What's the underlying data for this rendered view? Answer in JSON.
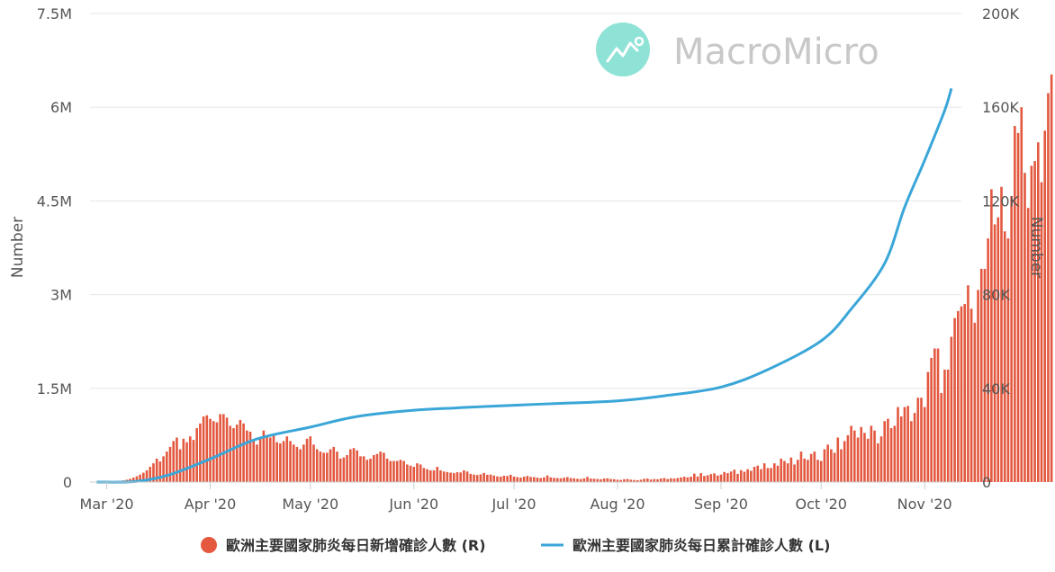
{
  "colors": {
    "bar": "#e3583f",
    "line": "#3aa6d8",
    "grid": "#e6e6e6",
    "watermark_circle": "#8fe3d6"
  },
  "watermark": {
    "text": "MacroMicro",
    "icon": "chart-line-icon"
  },
  "chart_data": {
    "type": "bar+line",
    "x": {
      "start": "2020-03-01",
      "end": "2020-11-09",
      "tick_labels": [
        "Mar '20",
        "Apr '20",
        "May '20",
        "Jun '20",
        "Jul '20",
        "Aug '20",
        "Sep '20",
        "Oct '20",
        "Nov '20"
      ],
      "tick_dates": [
        "2020-03-01",
        "2020-04-01",
        "2020-05-01",
        "2020-06-01",
        "2020-07-01",
        "2020-08-01",
        "2020-09-01",
        "2020-10-01",
        "2020-11-01"
      ]
    },
    "y_left": {
      "label": "Number",
      "range": [
        0,
        7500000
      ],
      "ticks": [
        0,
        1500000,
        3000000,
        4500000,
        6000000,
        7500000
      ],
      "tick_labels": [
        "0",
        "1.5M",
        "3M",
        "4.5M",
        "6M",
        "7.5M"
      ]
    },
    "y_right": {
      "label": "Number",
      "range": [
        0,
        200000
      ],
      "ticks": [
        0,
        40000,
        80000,
        120000,
        160000,
        200000
      ],
      "tick_labels": [
        "0",
        "40K",
        "80K",
        "120K",
        "160K",
        "200K"
      ]
    },
    "grid": true,
    "legend_position": "bottom-center",
    "series": [
      {
        "name": "歐洲主要國家肺炎每日新增確診人數 (R)",
        "type": "bar",
        "axis": "right",
        "start_date": "2020-03-02",
        "interval": "daily",
        "values": [
          50,
          150,
          300,
          500,
          700,
          1000,
          1400,
          1900,
          2500,
          3200,
          4000,
          5000,
          6500,
          8000,
          10000,
          8800,
          11000,
          13000,
          15000,
          17500,
          19000,
          14000,
          18500,
          17000,
          19500,
          18000,
          23000,
          25000,
          28000,
          28500,
          27000,
          26000,
          25500,
          29000,
          29000,
          27500,
          24000,
          23000,
          24500,
          26500,
          25000,
          22000,
          21500,
          18000,
          16000,
          18500,
          22000,
          20000,
          19000,
          20500,
          17000,
          16500,
          17500,
          19500,
          17500,
          16000,
          15000,
          14000,
          16000,
          18500,
          19500,
          16000,
          14000,
          13000,
          12500,
          12500,
          14000,
          15000,
          13000,
          10000,
          10500,
          11500,
          14000,
          14500,
          13500,
          11000,
          11000,
          9500,
          10000,
          11500,
          12000,
          13000,
          12500,
          10000,
          9000,
          9000,
          9000,
          9500,
          9000,
          7500,
          7000,
          6500,
          8000,
          7500,
          6000,
          5500,
          5000,
          5000,
          6500,
          5000,
          4500,
          4300,
          4000,
          3800,
          4200,
          4100,
          5000,
          4500,
          3500,
          3200,
          3000,
          3300,
          3900,
          3100,
          3200,
          2800,
          2400,
          2300,
          2700,
          2600,
          3100,
          2300,
          2100,
          1900,
          2300,
          2600,
          2200,
          2100,
          1900,
          1700,
          2000,
          2800,
          2000,
          1800,
          1700,
          1600,
          1900,
          2100,
          1700,
          1600,
          1400,
          1300,
          1600,
          2200,
          1500,
          1400,
          1300,
          1200,
          1500,
          1600,
          1300,
          1200,
          1000,
          900,
          1200,
          1300,
          1000,
          900,
          800,
          1000,
          1400,
          1500,
          1100,
          1300,
          1200,
          1500,
          1700,
          1300,
          1600,
          1500,
          1700,
          2000,
          2300,
          2000,
          2300,
          3600,
          2400,
          3800,
          2600,
          2900,
          3400,
          3700,
          2800,
          3200,
          4300,
          3800,
          4500,
          5300,
          3500,
          5100,
          4400,
          5500,
          4800,
          6500,
          7000,
          5500,
          8000,
          6000,
          6000,
          8000,
          7000,
          10000,
          9000,
          8000,
          10500,
          7500,
          9500,
          13000,
          10000,
          9500,
          12000,
          13000,
          9500,
          9000,
          14000,
          16000,
          14000,
          12500,
          19000,
          14000,
          17500,
          20000,
          24000,
          22000,
          19000,
          23500,
          21000,
          18500,
          24000,
          22000,
          16500,
          19500,
          26000,
          27000,
          23000,
          24000,
          32000,
          28000,
          32000,
          32500,
          26000,
          29500,
          36000,
          36000,
          32000,
          47000,
          53000,
          57000,
          57000,
          38000,
          48000,
          48000,
          62000,
          70000,
          73000,
          75000,
          76000,
          84000,
          74000,
          68000,
          82000,
          91000,
          91000,
          104000,
          125000,
          110000,
          113000,
          126000,
          107000,
          104000,
          122000,
          152000,
          149000,
          160000,
          132000,
          117000,
          135000,
          137000,
          145000,
          128000,
          150000,
          166000,
          174000
        ]
      },
      {
        "name": "歐洲主要國家肺炎每日累計確診人數 (L)",
        "type": "line",
        "axis": "left",
        "points": [
          [
            "2020-02-27",
            0
          ],
          [
            "2020-03-10",
            10000
          ],
          [
            "2020-03-20",
            120000
          ],
          [
            "2020-04-01",
            370000
          ],
          [
            "2020-04-15",
            690000
          ],
          [
            "2020-05-01",
            880000
          ],
          [
            "2020-05-15",
            1050000
          ],
          [
            "2020-06-01",
            1150000
          ],
          [
            "2020-06-15",
            1190000
          ],
          [
            "2020-07-01",
            1230000
          ],
          [
            "2020-07-15",
            1260000
          ],
          [
            "2020-08-01",
            1300000
          ],
          [
            "2020-08-15",
            1380000
          ],
          [
            "2020-09-01",
            1520000
          ],
          [
            "2020-09-15",
            1800000
          ],
          [
            "2020-10-01",
            2260000
          ],
          [
            "2020-10-10",
            2770000
          ],
          [
            "2020-10-20",
            3500000
          ],
          [
            "2020-10-26",
            4400000
          ],
          [
            "2020-11-01",
            5150000
          ],
          [
            "2020-11-07",
            5950000
          ],
          [
            "2020-11-09",
            6300000
          ]
        ]
      }
    ]
  }
}
